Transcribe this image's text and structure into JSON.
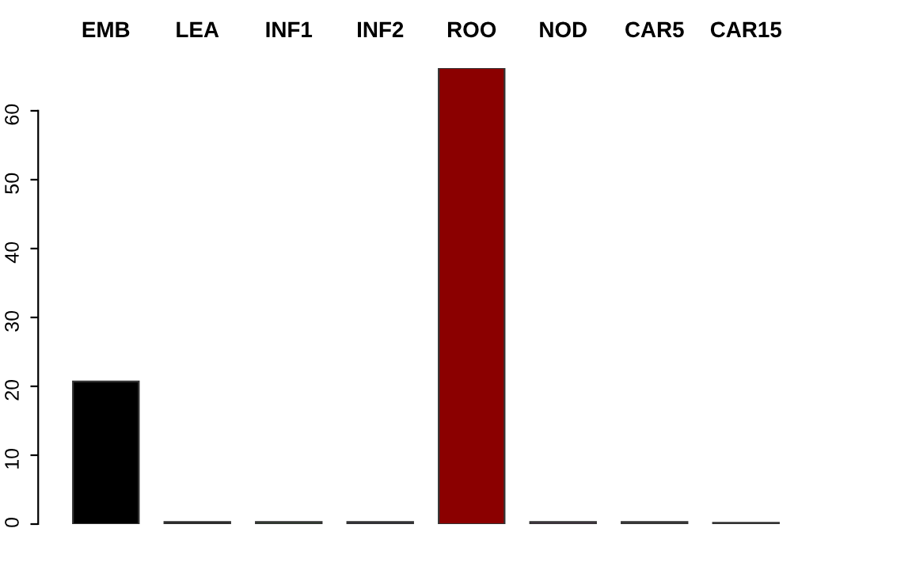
{
  "chart_data": {
    "type": "bar",
    "categories": [
      "EMB",
      "LEA",
      "INF1",
      "INF2",
      "ROO",
      "NOD",
      "CAR5",
      "CAR15"
    ],
    "values": [
      20.7,
      0.3,
      0.3,
      0.3,
      66.2,
      0.3,
      0.3,
      0.2
    ],
    "colors": [
      "#000000",
      "#1a1a1a",
      "#2f4f2f",
      "#333344",
      "#8b0000",
      "#5a3a5a",
      "#444444",
      "#777777"
    ],
    "ylim": [
      0,
      66.2
    ],
    "yticks": [
      0,
      10,
      20,
      30,
      40,
      50,
      60
    ],
    "grid": false
  }
}
